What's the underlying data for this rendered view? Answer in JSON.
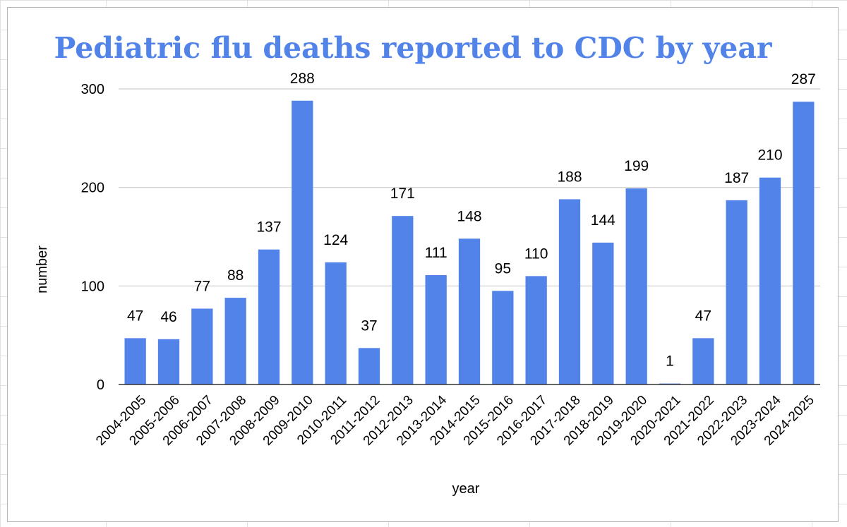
{
  "chart_data": {
    "type": "bar",
    "title": "Pediatric flu deaths reported to CDC by year",
    "xlabel": "year",
    "ylabel": "number",
    "ylim": [
      0,
      300
    ],
    "yticks": [
      0,
      100,
      200,
      300
    ],
    "grid": true,
    "legend": "none",
    "categories": [
      "2004-2005",
      "2005-2006",
      "2006-2007",
      "2007-2008",
      "2008-2009",
      "2009-2010",
      "2010-2011",
      "2011-2012",
      "2012-2013",
      "2013-2014",
      "2014-2015",
      "2015-2016",
      "2016-2017",
      "2017-2018",
      "2018-2019",
      "2019-2020",
      "2020-2021",
      "2021-2022",
      "2022-2023",
      "2023-2024",
      "2024-2025"
    ],
    "values": [
      47,
      46,
      77,
      88,
      137,
      288,
      124,
      37,
      171,
      111,
      148,
      95,
      110,
      188,
      144,
      199,
      1,
      47,
      187,
      210,
      287
    ]
  },
  "colors": {
    "bar": "#5283e9",
    "title": "#5283e9",
    "gridline": "#cccccc",
    "baseline": "#333333",
    "background": "#ffffff",
    "sheet_grid": "#e2e2e2"
  }
}
